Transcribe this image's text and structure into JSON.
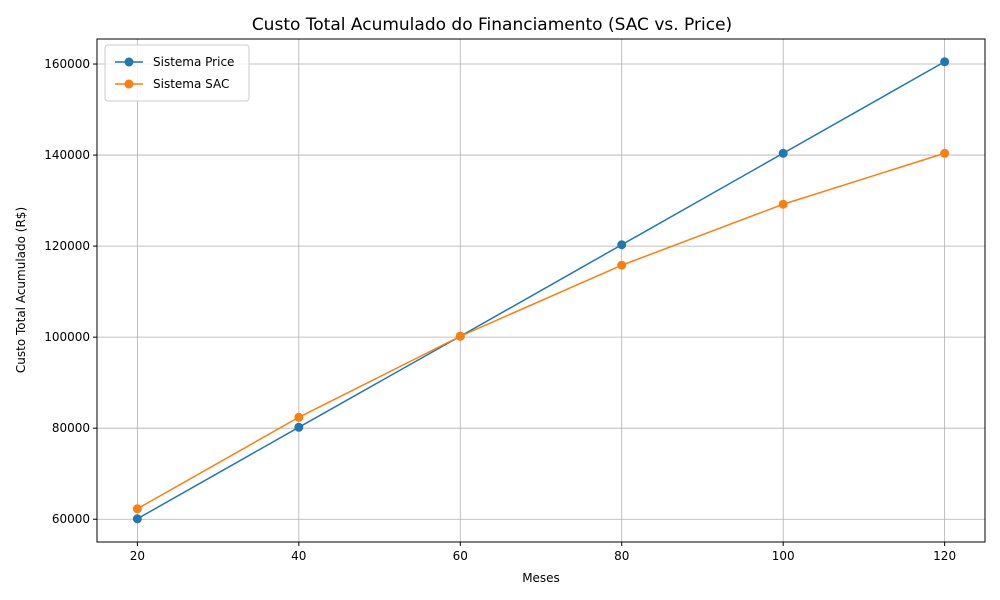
{
  "chart_data": {
    "type": "line",
    "title": "Custo Total Acumulado do Financiamento (SAC vs. Price)",
    "xlabel": "Meses",
    "ylabel": "Custo Total Acumulado (R$)",
    "x": [
      20,
      40,
      60,
      80,
      100,
      120
    ],
    "xlim": [
      15,
      125
    ],
    "ylim": [
      55000,
      165500
    ],
    "xticks": [
      20,
      40,
      60,
      80,
      100,
      120
    ],
    "yticks": [
      60000,
      80000,
      100000,
      120000,
      140000,
      160000
    ],
    "grid": true,
    "legend_position": "top-left",
    "series": [
      {
        "name": "Sistema Price",
        "color": "#1f77b4",
        "values": [
          60100,
          80200,
          100200,
          120300,
          140400,
          160500
        ]
      },
      {
        "name": "Sistema SAC",
        "color": "#ff7f0e",
        "values": [
          62300,
          82400,
          100200,
          115800,
          129200,
          140400
        ]
      }
    ]
  }
}
